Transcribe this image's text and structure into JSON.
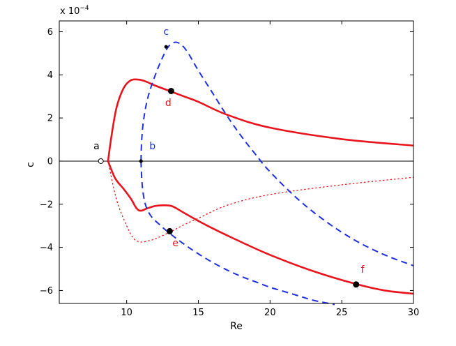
{
  "chart_data": {
    "type": "line",
    "title": "",
    "xlabel": "Re",
    "ylabel": "c",
    "y_scale_label": "x 10^-4",
    "y_scale_label_parts": {
      "prefix": "x 10",
      "exponent": "−4"
    },
    "xlim": [
      5.3,
      30
    ],
    "ylim": [
      -6.6,
      6.5
    ],
    "xticks": [
      10,
      15,
      20,
      25,
      30
    ],
    "yticks": [
      -6,
      -4,
      -2,
      0,
      2,
      4,
      6
    ],
    "grid": false,
    "legend": "none",
    "colors": {
      "red": "#e8141c",
      "blue": "#1f2fe0",
      "black": "#000000"
    },
    "series": [
      {
        "style": "solid",
        "color": "#e8141c",
        "x": [
          8.7,
          8.95,
          9.3,
          9.8,
          10.3,
          10.8,
          11.3,
          12.0,
          13.0,
          14.0,
          15.0,
          17.0,
          20.0,
          25.0,
          30.0
        ],
        "y": [
          0,
          1.2,
          2.5,
          3.4,
          3.75,
          3.78,
          3.7,
          3.5,
          3.25,
          3.0,
          2.75,
          2.15,
          1.55,
          1.02,
          0.72
        ]
      },
      {
        "style": "solid",
        "color": "#e8141c",
        "x": [
          8.7,
          9.2,
          9.8,
          10.3,
          10.7,
          11.0,
          11.4,
          12.0,
          12.6,
          13.2,
          14.0,
          15.5,
          17.5,
          20.0,
          23.0,
          26.0,
          28.0,
          30.0
        ],
        "y": [
          0,
          -0.8,
          -1.3,
          -1.75,
          -2.2,
          -2.3,
          -2.2,
          -2.08,
          -2.05,
          -2.1,
          -2.4,
          -2.95,
          -3.6,
          -4.35,
          -5.1,
          -5.7,
          -6.0,
          -6.15
        ]
      },
      {
        "style": "dotted",
        "color": "#e8141c",
        "x": [
          8.7,
          9.3,
          10.0,
          10.5,
          11.0,
          11.5,
          12.0,
          13.0,
          14.0,
          15.0,
          17.0,
          20.0,
          25.0,
          30.0
        ],
        "y": [
          0,
          -1.8,
          -3.0,
          -3.6,
          -3.75,
          -3.7,
          -3.6,
          -3.3,
          -2.95,
          -2.65,
          -2.05,
          -1.55,
          -1.1,
          -0.75
        ]
      },
      {
        "style": "dashed",
        "color": "#1f2fe0",
        "x": [
          11.0,
          11.05,
          11.2,
          11.5,
          12.0,
          12.5,
          12.9,
          13.3,
          13.7,
          14.2,
          15.0,
          16.0,
          17.0,
          18.0,
          19.0,
          20.0,
          22.0,
          24.0,
          26.0,
          28.0,
          30.0
        ],
        "y": [
          0,
          1.0,
          2.0,
          3.0,
          4.0,
          4.8,
          5.3,
          5.5,
          5.45,
          5.1,
          4.2,
          3.15,
          2.1,
          1.15,
          0.3,
          -0.5,
          -1.8,
          -2.85,
          -3.7,
          -4.35,
          -4.85
        ]
      },
      {
        "style": "dashed",
        "color": "#1f2fe0",
        "x": [
          11.0,
          11.05,
          11.15,
          11.35,
          11.7,
          12.3,
          13.0,
          14.0,
          15.0,
          16.0,
          17.0,
          18.0,
          19.0,
          20.0,
          21.0,
          22.0,
          23.0,
          24.5
        ],
        "y": [
          0,
          -0.8,
          -1.5,
          -2.1,
          -2.55,
          -2.95,
          -3.35,
          -3.85,
          -4.3,
          -4.7,
          -5.05,
          -5.35,
          -5.6,
          -5.85,
          -6.05,
          -6.25,
          -6.45,
          -6.65
        ]
      }
    ],
    "points": [
      {
        "label": "a",
        "x": 8.2,
        "y": 0,
        "marker": "open-circle",
        "color": "#000000",
        "label_color": "#000000",
        "label_dx": -0.3,
        "label_dy": 0.55
      },
      {
        "label": "b",
        "x": 11.0,
        "y": 0,
        "marker": "small-dot",
        "color": "#000000",
        "label_color": "#1f2fe0",
        "label_dx": 0.8,
        "label_dy": 0.55
      },
      {
        "label": "c",
        "x": 12.75,
        "y": 5.3,
        "marker": "small-dot",
        "color": "#000000",
        "label_color": "#1f2fe0",
        "label_dx": 0.0,
        "label_dy": 0.55
      },
      {
        "label": "d",
        "x": 13.1,
        "y": 3.25,
        "marker": "dot",
        "color": "#000000",
        "label_color": "#e8141c",
        "label_dx": -0.2,
        "label_dy": -0.7
      },
      {
        "label": "e",
        "x": 13.0,
        "y": -3.25,
        "marker": "dot",
        "color": "#000000",
        "label_color": "#e8141c",
        "label_dx": 0.4,
        "label_dy": -0.7
      },
      {
        "label": "f",
        "x": 26.0,
        "y": -5.72,
        "marker": "dot",
        "color": "#000000",
        "label_color": "#e8141c",
        "label_dx": 0.45,
        "label_dy": 0.55
      }
    ]
  }
}
